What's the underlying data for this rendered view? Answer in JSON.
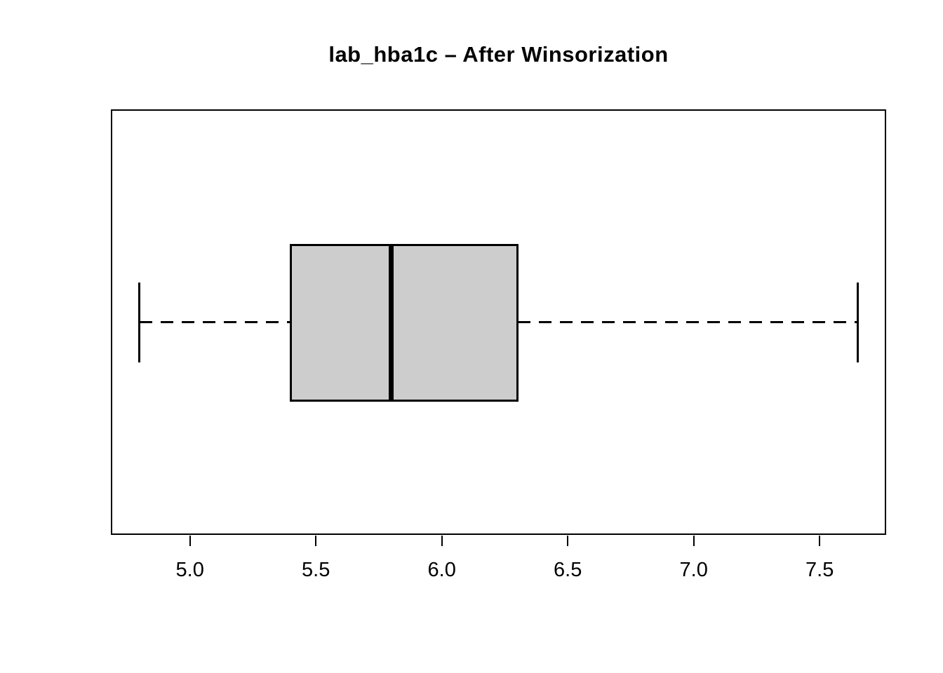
{
  "page": {
    "background": "#FFFFFF"
  },
  "chart_data": {
    "type": "boxplot",
    "orientation": "horizontal",
    "title": "lab_hba1c – After Winsorization",
    "xlabel": "",
    "ylabel": "",
    "x_ticks": [
      5.0,
      5.5,
      6.0,
      6.5,
      7.0,
      7.5
    ],
    "x_tick_labels": [
      "5.0",
      "5.5",
      "6.0",
      "6.5",
      "7.0",
      "7.5"
    ],
    "xlim": [
      4.686,
      7.764
    ],
    "grid": false,
    "legend": null,
    "series": [
      {
        "name": "lab_hba1c",
        "whisker_low": 4.8,
        "q1": 5.4,
        "median": 5.8,
        "q3": 6.3,
        "whisker_high": 7.65,
        "outliers": []
      }
    ],
    "colors": {
      "box_fill": "#CDCDCD",
      "line": "#000000",
      "background": "#FFFFFF"
    }
  }
}
